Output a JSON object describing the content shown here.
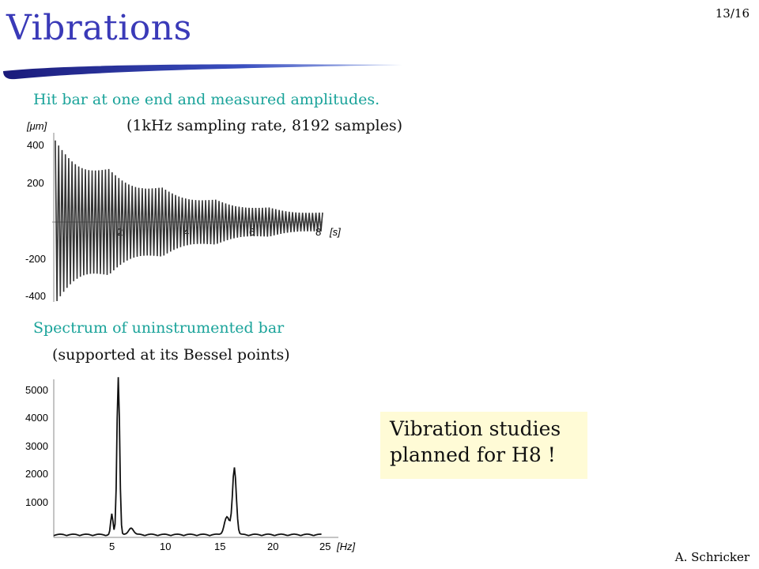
{
  "slide": {
    "title": "Vibrations",
    "page_number": "13/16",
    "author": "A. Schricker",
    "caption1_line1": "Hit bar at one end and measured amplitudes.",
    "caption1_line2": "(1kHz sampling rate, 8192 samples)",
    "caption2_line1": "Spectrum of uninstrumented bar",
    "caption2_line2": "(supported at its Bessel points)",
    "note_line1": "Vibration studies",
    "note_line2": "planned for H8 !"
  },
  "chart_data": [
    {
      "type": "line",
      "ylabel": "[μm]",
      "xlabel": "[s]",
      "x_ticks": [
        "2",
        "4",
        "6",
        "8"
      ],
      "y_ticks": [
        "400",
        "200",
        "-200",
        "-400"
      ],
      "xlim": [
        0,
        8.2
      ],
      "ylim": [
        -450,
        450
      ],
      "initial_amplitude": 430,
      "final_amplitude": 50,
      "peak_count": 80
    },
    {
      "type": "line",
      "xlabel": "[Hz]",
      "x_ticks": [
        "5",
        "10",
        "15",
        "20",
        "25"
      ],
      "y_ticks": [
        "5000",
        "4000",
        "3000",
        "2000",
        "1000"
      ],
      "xlim": [
        0,
        27
      ],
      "ylim": [
        0,
        5500
      ],
      "peaks": [
        {
          "x": 6.0,
          "y": 5500
        },
        {
          "x": 16.8,
          "y": 2400
        }
      ]
    }
  ]
}
